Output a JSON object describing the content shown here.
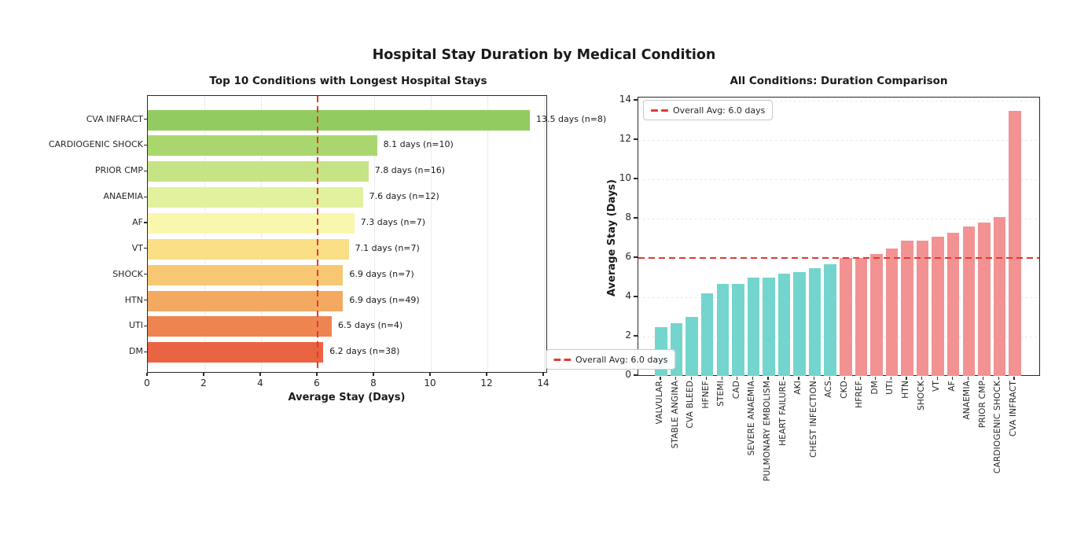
{
  "figure_title": "Hospital Stay Duration by Medical Condition",
  "chart_data": [
    {
      "type": "bar",
      "orientation": "horizontal",
      "title": "Top 10 Conditions with Longest Hospital Stays",
      "xlabel": "Average Stay (Days)",
      "xlim": [
        0,
        14.2
      ],
      "xticks": [
        0,
        2,
        4,
        6,
        8,
        10,
        12,
        14
      ],
      "grid": "vertical, light solid",
      "avg_line": {
        "value": 6.0,
        "style": "dashed",
        "color": "#e3392e"
      },
      "legend_label": "Overall Avg: 6.0 days",
      "legend_position": "lower right",
      "categories": [
        "CVA INFRACT",
        "CARDIOGENIC SHOCK",
        "PRIOR CMP",
        "ANAEMIA",
        "AF",
        "VT",
        "SHOCK",
        "HTN",
        "UTI",
        "DM"
      ],
      "values": [
        13.5,
        8.1,
        7.8,
        7.6,
        7.3,
        7.1,
        6.9,
        6.9,
        6.5,
        6.2
      ],
      "n_counts": [
        8,
        10,
        16,
        12,
        7,
        7,
        7,
        49,
        4,
        38
      ],
      "annotations": [
        "13.5 days (n=8)",
        "8.1 days (n=10)",
        "7.8 days (n=16)",
        "7.6 days (n=12)",
        "7.3 days (n=7)",
        "7.1 days (n=7)",
        "6.9 days (n=7)",
        "6.9 days (n=49)",
        "6.5 days (n=4)",
        "6.2 days (n=38)"
      ],
      "bar_colors": [
        "#92cc60",
        "#a9d76e",
        "#c6e485",
        "#e1f19e",
        "#f9f7ae",
        "#fbdf87",
        "#f8c773",
        "#f3aa60",
        "#ee8450",
        "#ea6342"
      ]
    },
    {
      "type": "bar",
      "orientation": "vertical",
      "title": "All Conditions: Duration Comparison",
      "ylabel": "Average Stay (Days)",
      "ylim": [
        0,
        14.2
      ],
      "yticks": [
        0,
        2,
        4,
        6,
        8,
        10,
        12,
        14
      ],
      "grid": "horizontal, light dotted",
      "avg_line": {
        "value": 6.0,
        "style": "dashed",
        "color": "#e3392e"
      },
      "legend_label": "Overall Avg: 6.0 days",
      "legend_position": "upper left",
      "categories": [
        "VALVULAR",
        "STABLE ANGINA",
        "CVA BLEED",
        "HFNEF",
        "STEMI",
        "CAD",
        "SEVERE ANAEMIA",
        "PULMONARY EMBOLISM",
        "HEART FAILURE",
        "AKI",
        "CHEST INFECTION",
        "ACS",
        "CKD",
        "HFREF",
        "DM",
        "UTI",
        "HTN",
        "SHOCK",
        "VT",
        "AF",
        "ANAEMIA",
        "PRIOR CMP",
        "CARDIOGENIC SHOCK",
        "CVA INFRACT"
      ],
      "values": [
        2.5,
        2.7,
        3.0,
        4.2,
        4.7,
        4.7,
        5.0,
        5.0,
        5.2,
        5.3,
        5.5,
        5.7,
        6.0,
        6.0,
        6.2,
        6.5,
        6.9,
        6.9,
        7.1,
        7.3,
        7.6,
        7.8,
        8.1,
        13.5
      ],
      "color_below_avg": "#73d5cd",
      "color_above_avg": "#f29292"
    }
  ]
}
